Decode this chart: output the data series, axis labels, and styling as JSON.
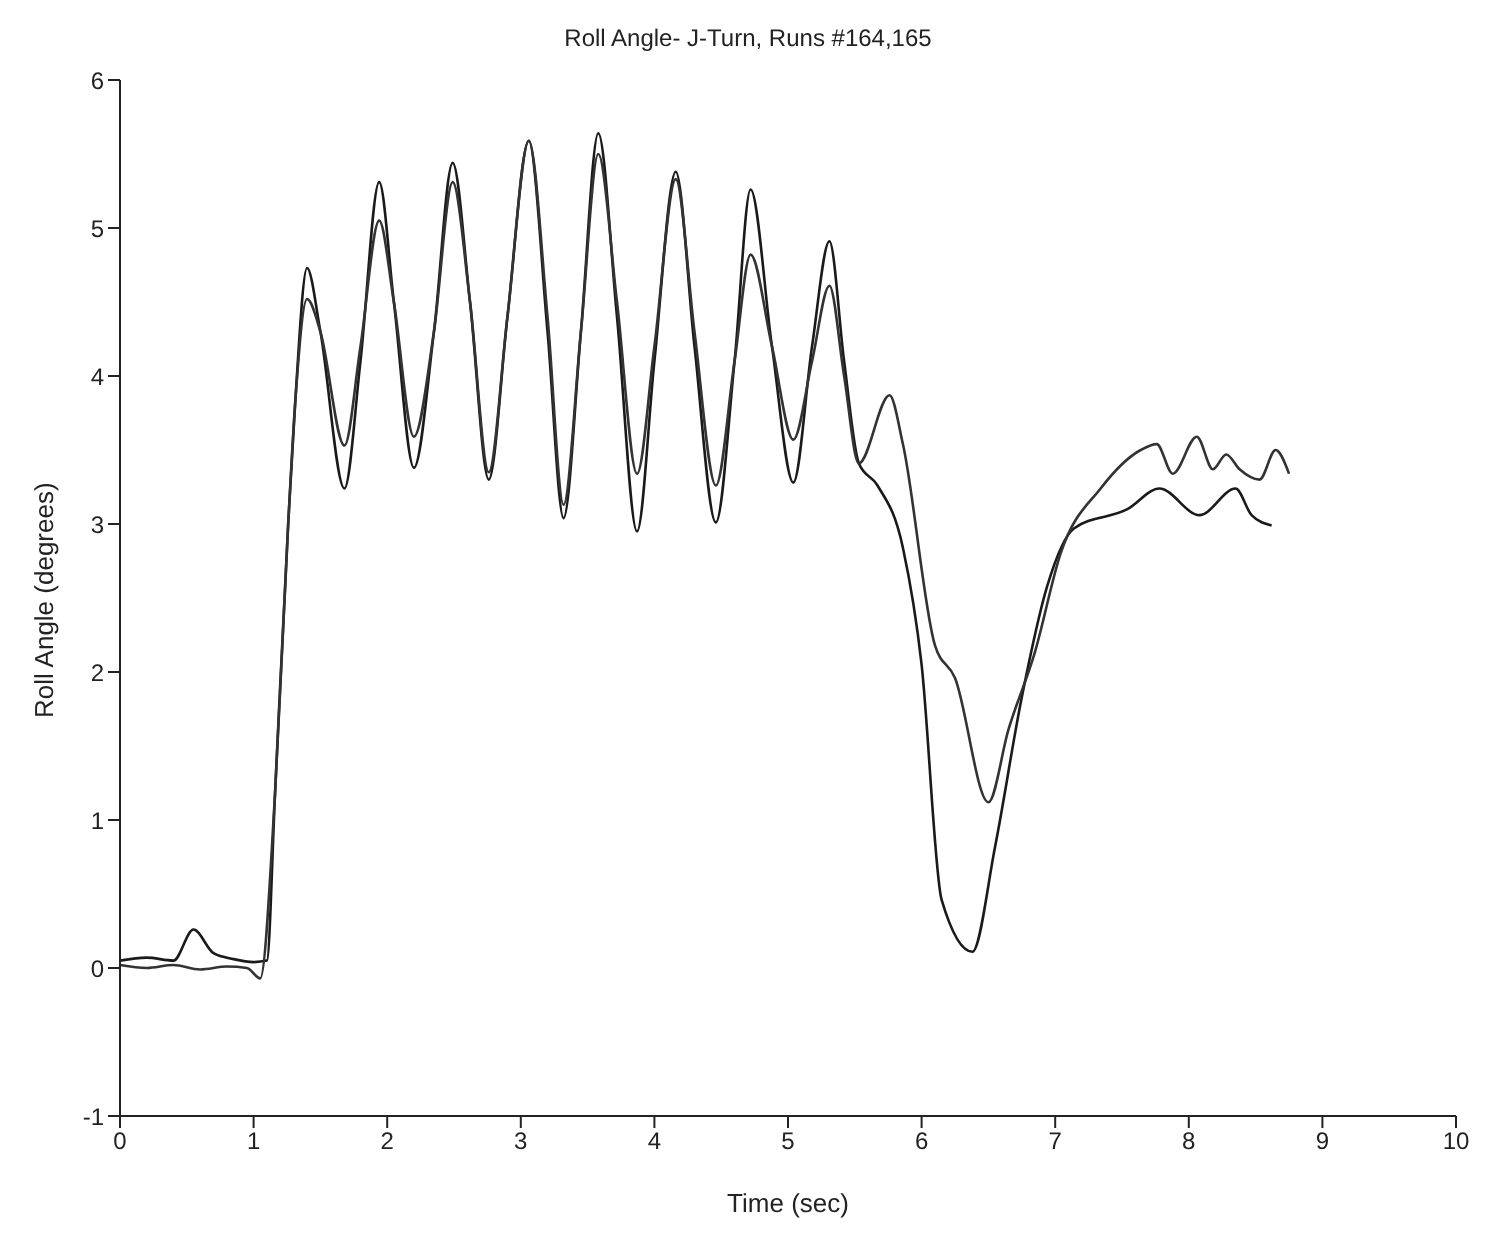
{
  "chart_data": {
    "type": "line",
    "title": "Roll Angle- J-Turn, Runs #164,165",
    "xlabel": "Time (sec)",
    "ylabel": "Roll Angle (degrees)",
    "xlim": [
      0,
      10
    ],
    "xticks": [
      0,
      1,
      2,
      3,
      4,
      5,
      6,
      7,
      8,
      9,
      10
    ],
    "ylim": [
      -1,
      6
    ],
    "yticks": [
      -1,
      0,
      1,
      2,
      3,
      4,
      5,
      6
    ],
    "grid": false,
    "legend": false,
    "marker": "none",
    "line_style": "solid",
    "series": [
      {
        "color": "#1a1a1a",
        "x": [
          0,
          0.2,
          0.4,
          0.55,
          0.7,
          0.85,
          1.0,
          1.1,
          1.16,
          1.26,
          1.31,
          1.4,
          1.5,
          1.68,
          1.8,
          1.94,
          2.05,
          2.2,
          2.35,
          2.49,
          2.62,
          2.76,
          2.9,
          3.06,
          3.2,
          3.32,
          3.45,
          3.58,
          3.72,
          3.87,
          4.0,
          4.16,
          4.3,
          4.46,
          4.6,
          4.72,
          4.88,
          5.04,
          5.18,
          5.31,
          5.42,
          5.53,
          5.67,
          5.86,
          6.0,
          6.15,
          6.38,
          6.55,
          6.75,
          6.94,
          7.14,
          7.54,
          7.78,
          8.08,
          8.35,
          8.47,
          8.62
        ],
        "values": [
          0.05,
          0.07,
          0.05,
          0.26,
          0.1,
          0.06,
          0.04,
          0.05,
          1.17,
          3.02,
          3.8,
          4.73,
          4.3,
          3.24,
          4.1,
          5.31,
          4.5,
          3.38,
          4.3,
          5.44,
          4.5,
          3.3,
          4.4,
          5.59,
          4.3,
          3.04,
          4.3,
          5.64,
          4.4,
          2.95,
          4.1,
          5.38,
          4.2,
          3.01,
          4.1,
          5.26,
          4.2,
          3.28,
          4.2,
          4.91,
          4.1,
          3.41,
          3.26,
          2.84,
          2.05,
          0.46,
          0.11,
          0.82,
          1.83,
          2.58,
          2.97,
          3.1,
          3.24,
          3.06,
          3.24,
          3.06,
          2.99
        ]
      },
      {
        "color": "#333333",
        "x": [
          0,
          0.2,
          0.4,
          0.6,
          0.8,
          0.95,
          1.05,
          1.16,
          1.26,
          1.31,
          1.4,
          1.5,
          1.68,
          1.8,
          1.94,
          2.05,
          2.2,
          2.35,
          2.49,
          2.62,
          2.76,
          2.9,
          3.06,
          3.2,
          3.32,
          3.45,
          3.58,
          3.72,
          3.87,
          4.0,
          4.16,
          4.3,
          4.46,
          4.6,
          4.72,
          4.88,
          5.04,
          5.18,
          5.31,
          5.42,
          5.53,
          5.76,
          5.86,
          6.1,
          6.25,
          6.5,
          6.65,
          6.85,
          7.04,
          7.34,
          7.64,
          7.76,
          7.88,
          8.06,
          8.18,
          8.28,
          8.38,
          8.53,
          8.65,
          8.75
        ],
        "values": [
          0.02,
          0.0,
          0.02,
          -0.01,
          0.01,
          0.0,
          -0.07,
          1.17,
          3.02,
          3.8,
          4.52,
          4.3,
          3.53,
          4.2,
          5.05,
          4.5,
          3.59,
          4.3,
          5.31,
          4.5,
          3.35,
          4.4,
          5.59,
          4.4,
          3.13,
          4.3,
          5.5,
          4.5,
          3.34,
          4.2,
          5.33,
          4.3,
          3.26,
          4.1,
          4.82,
          4.2,
          3.57,
          4.1,
          4.61,
          4.0,
          3.41,
          3.87,
          3.54,
          2.18,
          1.96,
          1.12,
          1.61,
          2.14,
          2.8,
          3.24,
          3.5,
          3.54,
          3.34,
          3.59,
          3.37,
          3.47,
          3.37,
          3.3,
          3.5,
          3.34
        ]
      }
    ]
  }
}
